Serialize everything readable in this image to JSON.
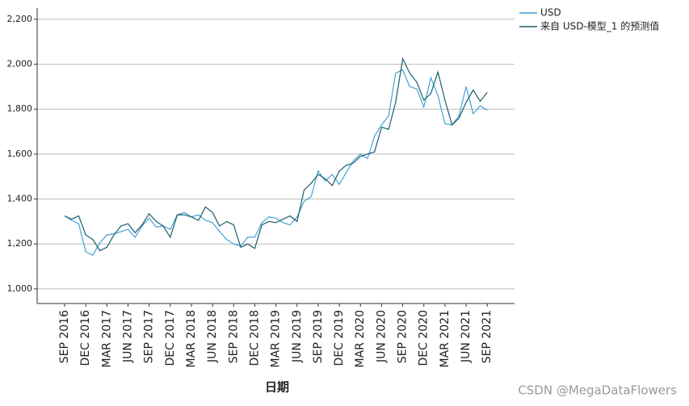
{
  "chart_data": {
    "type": "line",
    "xlabel": "日期",
    "categories": [
      "SEP 2016",
      null,
      null,
      "DEC 2016",
      null,
      null,
      "MAR 2017",
      null,
      null,
      "JUN 2017",
      null,
      null,
      "SEP 2017",
      null,
      null,
      "DEC 2017",
      null,
      null,
      "MAR 2018",
      null,
      null,
      "JUN 2018",
      null,
      null,
      "SEP 2018",
      null,
      null,
      "DEC 2018",
      null,
      null,
      "MAR 2019",
      null,
      null,
      "JUN 2019",
      null,
      null,
      "SEP 2019",
      null,
      null,
      "DEC 2019",
      null,
      null,
      "MAR 2020",
      null,
      null,
      "JUN 2020",
      null,
      null,
      "SEP 2020",
      null,
      null,
      "DEC 2020",
      null,
      null,
      "MAR 2021",
      null,
      null,
      "JUN 2021",
      null,
      null,
      "SEP 2021"
    ],
    "series": [
      {
        "name": "USD",
        "color": "#3fa3d6",
        "values": [
          1325,
          1305,
          1290,
          1165,
          1150,
          1205,
          1240,
          1245,
          1255,
          1265,
          1230,
          1280,
          1315,
          1275,
          1280,
          1265,
          1330,
          1340,
          1320,
          1330,
          1305,
          1295,
          1255,
          1220,
          1200,
          1190,
          1230,
          1230,
          1295,
          1320,
          1315,
          1295,
          1285,
          1320,
          1390,
          1410,
          1525,
          1480,
          1510,
          1465,
          1520,
          1570,
          1600,
          1580,
          1680,
          1730,
          1770,
          1960,
          1975,
          1900,
          1890,
          1810,
          1940,
          1860,
          1735,
          1730,
          1770,
          1900,
          1780,
          1815,
          1795
        ]
      },
      {
        "name": "来自 USD-模型_1 的预测值",
        "color": "#1b5f6c",
        "values": [
          1325,
          1310,
          1325,
          1240,
          1220,
          1170,
          1185,
          1240,
          1280,
          1290,
          1250,
          1285,
          1335,
          1300,
          1280,
          1230,
          1330,
          1330,
          1320,
          1305,
          1365,
          1340,
          1280,
          1300,
          1285,
          1185,
          1200,
          1180,
          1285,
          1300,
          1295,
          1310,
          1325,
          1300,
          1440,
          1470,
          1510,
          1490,
          1460,
          1525,
          1550,
          1560,
          1590,
          1600,
          1610,
          1720,
          1710,
          1830,
          2025,
          1960,
          1920,
          1840,
          1870,
          1965,
          1840,
          1730,
          1760,
          1830,
          1885,
          1835,
          1875
        ]
      }
    ],
    "ylim": [
      935,
      2250
    ],
    "yticks": [
      {
        "value": 1000,
        "label": "1,000"
      },
      {
        "value": 1200,
        "label": "1,200"
      },
      {
        "value": 1400,
        "label": "1,400"
      },
      {
        "value": 1600,
        "label": "1,600"
      },
      {
        "value": 1800,
        "label": "1,800"
      },
      {
        "value": 2000,
        "label": "2,000"
      },
      {
        "value": 2200,
        "label": "2,200"
      }
    ],
    "grid": true,
    "legend": "top-right",
    "watermark": "CSDN @MegaDataFlowers"
  }
}
